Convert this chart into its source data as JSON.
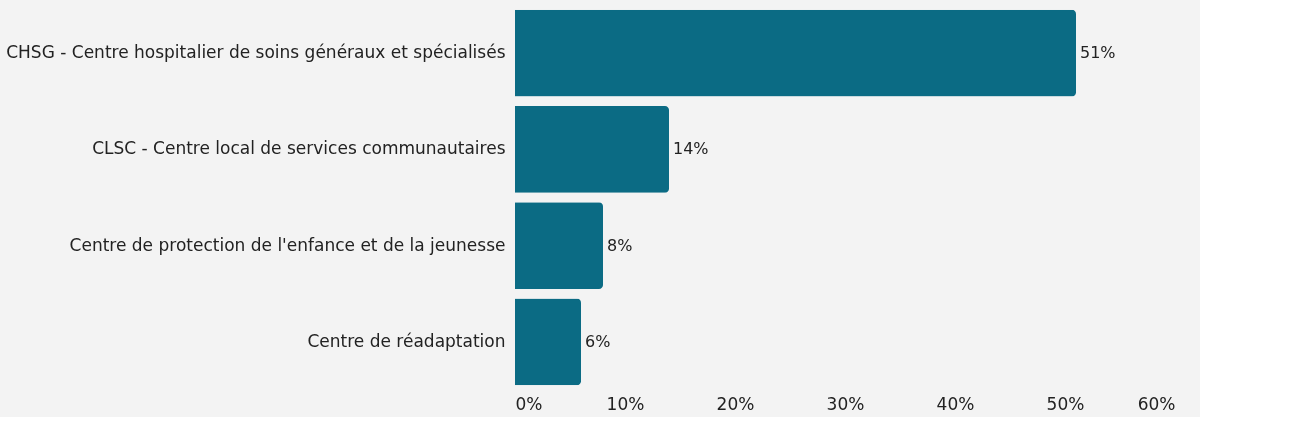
{
  "chart_data": {
    "type": "bar",
    "orientation": "horizontal",
    "categories": [
      "CHSG - Centre hospitalier de soins généraux et spécialisés",
      "CLSC - Centre local de services communautaires",
      "Centre de protection de l'enfance et de la jeunesse",
      "Centre de réadaptation"
    ],
    "values": [
      51,
      14,
      8,
      6
    ],
    "value_labels": [
      "51%",
      "14%",
      "8%",
      "6%"
    ],
    "color": "#0b6b84",
    "xlim": [
      0,
      60
    ],
    "xticks": [
      {
        "value": 0,
        "label": "0%"
      },
      {
        "value": 10,
        "label": "10%"
      },
      {
        "value": 20,
        "label": "20%"
      },
      {
        "value": 30,
        "label": "30%"
      },
      {
        "value": 40,
        "label": "40%"
      },
      {
        "value": 50,
        "label": "50%"
      },
      {
        "value": 60,
        "label": "60%"
      }
    ],
    "grid": false
  }
}
